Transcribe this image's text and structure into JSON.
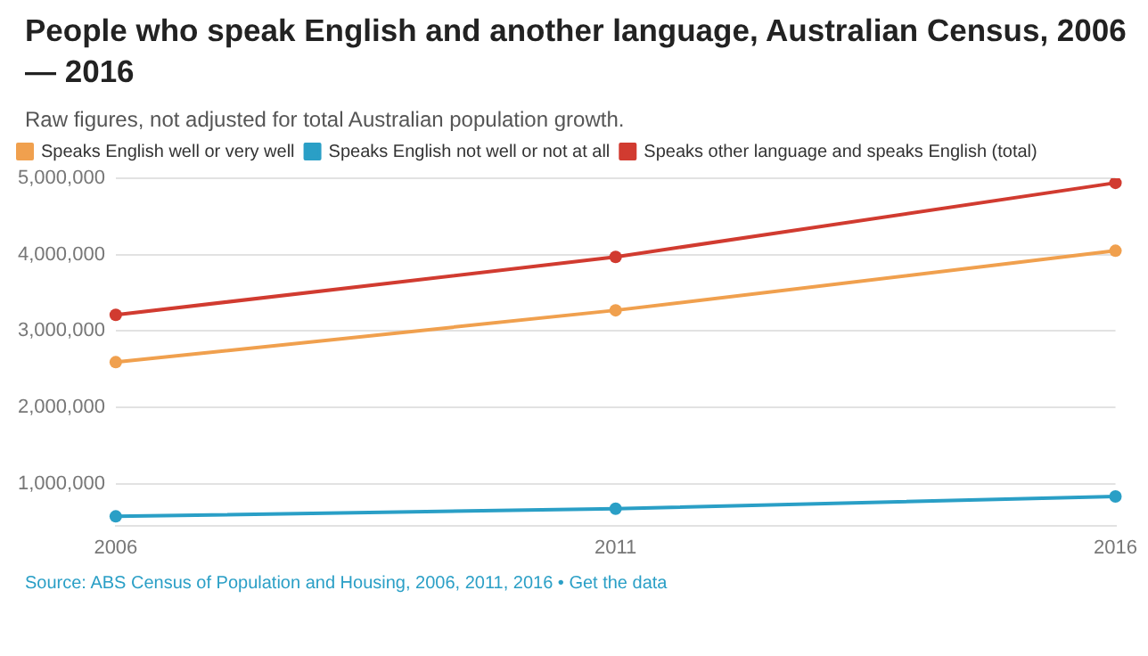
{
  "chart_data": {
    "type": "line",
    "title": "People who speak English and another language, Australian Census, 2006 — 2016",
    "subtitle": "Raw figures, not adjusted for total Australian population growth.",
    "categories": [
      "2006",
      "2011",
      "2016"
    ],
    "series": [
      {
        "name": "Speaks English well or very well",
        "color": "#f0a04e",
        "values": [
          2590000,
          3270000,
          4050000
        ]
      },
      {
        "name": "Speaks English not well or not at all",
        "color": "#2a9fc6",
        "values": [
          570000,
          670000,
          830000
        ]
      },
      {
        "name": "Speaks other language and speaks English (total)",
        "color": "#d13b30",
        "values": [
          3210000,
          3970000,
          4940000
        ]
      }
    ],
    "ylim": [
      450000,
      5000000
    ],
    "yticks": [
      {
        "value": 1000000,
        "label": "1,000,000"
      },
      {
        "value": 2000000,
        "label": "2,000,000"
      },
      {
        "value": 3000000,
        "label": "3,000,000"
      },
      {
        "value": 4000000,
        "label": "4,000,000"
      },
      {
        "value": 5000000,
        "label": "5,000,000"
      }
    ],
    "grid": "y",
    "legend": "top left",
    "marker": "circle",
    "line_style": "solid",
    "annotations": [
      "Source: ABS Census of Population and Housing, 2006, 2011, 2016 • Get the data"
    ]
  }
}
